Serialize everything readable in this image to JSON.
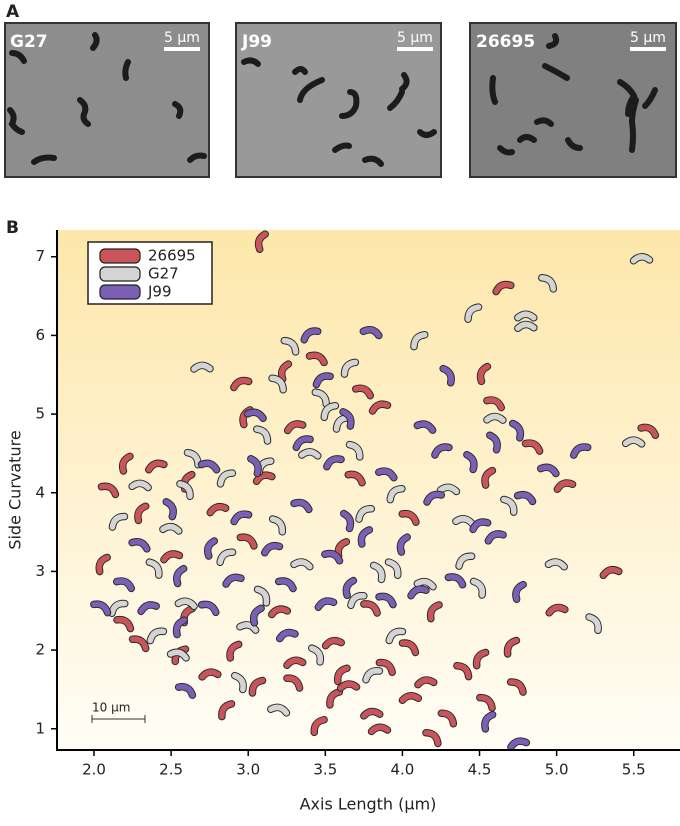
{
  "panel_a": {
    "label": "A",
    "images": [
      {
        "name": "G27",
        "scale_bar": "5 µm"
      },
      {
        "name": "J99",
        "scale_bar": "5 µm"
      },
      {
        "name": "26695",
        "scale_bar": "5 µm"
      }
    ]
  },
  "chart_data": {
    "type": "scatter",
    "panel_label": "B",
    "x_label": "Axis Length (µm)",
    "y_label": "Side Curvature",
    "scale_bar": "10 µm",
    "xlim": [
      1.76,
      5.8
    ],
    "ylim": [
      0.73,
      7.34
    ],
    "xticks": [
      {
        "value": 2,
        "label": "2.0"
      },
      2.5,
      {
        "value": 3,
        "label": "3.0"
      },
      3.5,
      {
        "value": 4,
        "label": "4.0"
      },
      4.5,
      {
        "value": 5,
        "label": "5.0"
      },
      5.5
    ],
    "yticks": [
      1,
      2,
      3,
      4,
      5,
      6,
      7
    ],
    "legend": "top-left",
    "series": [
      {
        "name": "26695",
        "color": "#c9545a",
        "x": [
          3.08,
          4.65,
          3.45,
          3.23,
          2.95,
          3.75,
          4.52,
          3.85,
          4.6,
          2.98,
          3.3,
          5.6,
          2.2,
          2.4,
          4.85,
          4.55,
          5.05,
          2.1,
          2.6,
          3.1,
          3.7,
          2.3,
          2.8,
          4.05,
          2.05,
          2.5,
          3.0,
          3.6,
          5.35,
          2.2,
          2.6,
          3.2,
          3.8,
          4.2,
          5.0,
          2.3,
          2.9,
          3.55,
          4.05,
          4.7,
          3.3,
          3.9,
          4.5,
          2.75,
          3.3,
          3.6,
          4.15,
          4.75,
          3.55,
          4.05,
          4.55,
          2.85,
          3.8,
          4.3,
          3.45,
          3.85,
          4.2,
          3.05,
          3.65,
          4.4,
          2.55
        ],
        "y": [
          7.2,
          6.62,
          5.72,
          5.55,
          5.4,
          5.3,
          5.52,
          5.1,
          5.15,
          4.97,
          4.85,
          4.8,
          4.38,
          4.35,
          4.6,
          4.2,
          4.1,
          4.05,
          4.15,
          4.2,
          4.2,
          3.75,
          3.8,
          3.7,
          3.1,
          3.2,
          3.4,
          3.3,
          3.0,
          2.35,
          2.45,
          2.5,
          2.55,
          2.5,
          2.52,
          2.1,
          2.0,
          2.1,
          2.05,
          2.05,
          1.85,
          1.8,
          1.9,
          1.7,
          1.6,
          1.7,
          1.6,
          1.55,
          1.4,
          1.4,
          1.35,
          1.25,
          1.2,
          1.15,
          1.05,
          1.0,
          0.9,
          1.55,
          1.55,
          1.75,
          1.95
        ]
      },
      {
        "name": "G27",
        "color": "#d4d4d4",
        "x": [
          5.55,
          4.95,
          4.45,
          4.8,
          3.28,
          4.1,
          2.7,
          3.2,
          3.65,
          4.8,
          3.48,
          3.52,
          4.6,
          3.1,
          3.6,
          5.5,
          2.65,
          3.1,
          3.4,
          3.7,
          3.95,
          2.3,
          2.6,
          2.85,
          4.3,
          4.7,
          2.15,
          2.5,
          3.2,
          3.75,
          4.4,
          2.4,
          2.85,
          3.35,
          3.95,
          4.4,
          5.0,
          5.25,
          2.15,
          2.6,
          3.1,
          3.7,
          4.15,
          4.5,
          2.4,
          3.0,
          3.45,
          3.95,
          3.2,
          2.95,
          3.8,
          2.55,
          3.85
        ],
        "y": [
          6.98,
          6.68,
          6.3,
          6.12,
          5.88,
          5.95,
          5.6,
          5.4,
          5.6,
          6.25,
          5.22,
          5.05,
          4.95,
          4.75,
          4.9,
          4.65,
          4.45,
          4.35,
          4.5,
          4.55,
          4.0,
          4.1,
          4.05,
          4.2,
          4.05,
          3.85,
          3.65,
          3.55,
          3.6,
          3.75,
          3.65,
          3.05,
          3.2,
          3.1,
          3.05,
          3.15,
          3.1,
          2.35,
          2.55,
          2.6,
          2.7,
          2.65,
          2.85,
          2.8,
          2.2,
          2.3,
          1.95,
          2.2,
          1.25,
          1.6,
          1.7,
          1.95,
          3.0
        ]
      },
      {
        "name": "J99",
        "color": "#7a5fb5",
        "x": [
          3.4,
          3.8,
          4.3,
          3.48,
          3.05,
          3.65,
          3.35,
          4.15,
          4.75,
          5.15,
          4.95,
          4.6,
          4.25,
          2.75,
          3.05,
          3.55,
          3.9,
          4.45,
          4.2,
          4.8,
          2.5,
          2.95,
          3.35,
          3.65,
          4.5,
          2.3,
          2.75,
          3.15,
          3.55,
          4.0,
          4.6,
          2.2,
          2.55,
          2.9,
          3.25,
          3.65,
          4.1,
          4.35,
          4.75,
          2.35,
          2.75,
          3.05,
          3.5,
          3.9,
          2.55,
          3.25,
          2.6,
          4.55,
          4.75,
          2.05,
          3.75
        ],
        "y": [
          6.02,
          6.05,
          5.5,
          5.45,
          5.0,
          4.95,
          4.65,
          4.85,
          4.8,
          4.55,
          4.3,
          4.65,
          4.55,
          4.35,
          4.35,
          4.4,
          4.25,
          4.4,
          3.95,
          3.95,
          3.8,
          3.7,
          3.85,
          3.65,
          3.6,
          3.35,
          3.3,
          3.3,
          3.2,
          3.35,
          3.45,
          2.85,
          2.95,
          2.9,
          2.85,
          2.8,
          2.75,
          2.9,
          2.75,
          2.55,
          2.55,
          2.45,
          2.6,
          2.65,
          2.3,
          2.2,
          1.5,
          1.1,
          0.82,
          2.55,
          3.45
        ]
      }
    ]
  }
}
